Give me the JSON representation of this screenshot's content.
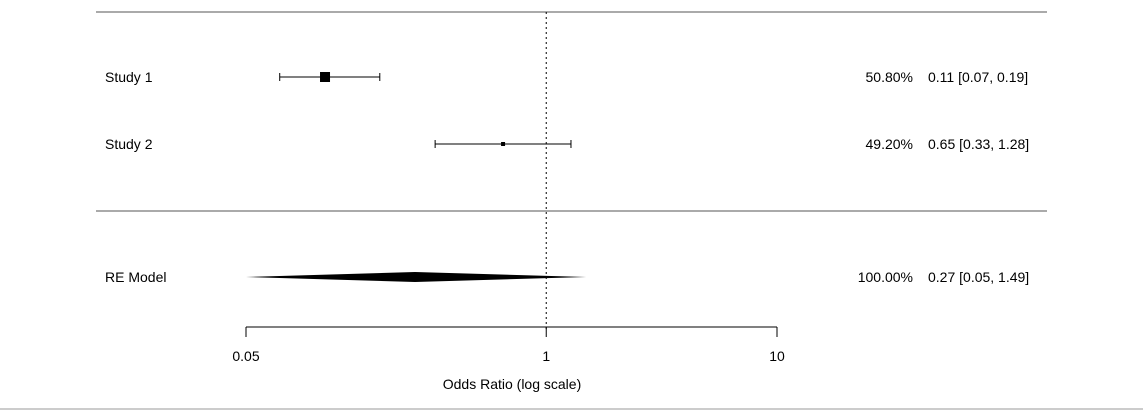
{
  "chart_data": {
    "type": "forest",
    "xlabel": "Odds Ratio (log scale)",
    "xscale": "log",
    "xlim": [
      0.05,
      10
    ],
    "xticks": [
      0.05,
      1,
      10
    ],
    "tick_labels": [
      "0.05",
      "1",
      "10"
    ],
    "reference_line": 1,
    "studies": [
      {
        "label": "Study 1",
        "weight": "50.80%",
        "ci_text": "0.11 [0.07, 0.19]",
        "est": 0.11,
        "lo": 0.07,
        "hi": 0.19,
        "w": 50.8
      },
      {
        "label": "Study 2",
        "weight": "49.20%",
        "ci_text": "0.65 [0.33, 1.28]",
        "est": 0.65,
        "lo": 0.33,
        "hi": 1.28,
        "w": 49.2
      }
    ],
    "summary": {
      "label": "RE Model",
      "weight": "100.00%",
      "ci_text": "0.27 [0.05, 1.49]",
      "est": 0.27,
      "lo": 0.05,
      "hi": 1.49
    }
  }
}
